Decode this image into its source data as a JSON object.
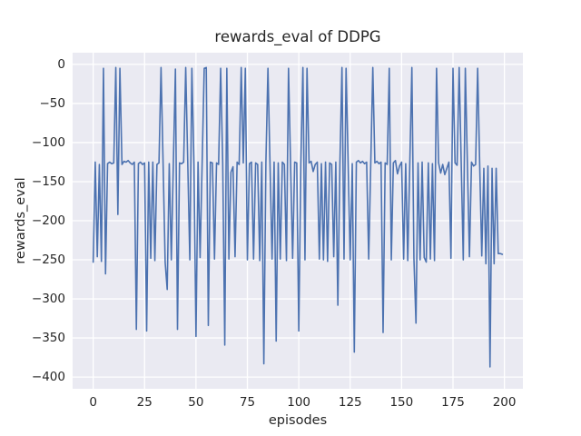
{
  "chart_data": {
    "type": "line",
    "title": "rewards_eval of DDPG",
    "xlabel": "episodes",
    "ylabel": "rewards_eval",
    "grid": true,
    "legend": "none",
    "xlim": [
      -10,
      209
    ],
    "ylim": [
      -415,
      15
    ],
    "x_ticks": [
      0,
      25,
      50,
      75,
      100,
      125,
      150,
      175,
      200
    ],
    "x_tick_labels": [
      "0",
      "25",
      "50",
      "75",
      "100",
      "125",
      "150",
      "175",
      "200"
    ],
    "y_ticks": [
      0,
      -50,
      -100,
      -150,
      -200,
      -250,
      -300,
      -350,
      -400
    ],
    "y_tick_labels": [
      "0",
      "−50",
      "−100",
      "−150",
      "−200",
      "−250",
      "−300",
      "−350",
      "−400"
    ],
    "colors": {
      "line": "#4c72b0",
      "axes_background": "#eaeaf2",
      "grid": "#ffffff",
      "figure_background": "#ffffff",
      "text": "#262626"
    },
    "series": [
      {
        "name": "rewards_eval",
        "color": "#4c72b0",
        "x_start": 0,
        "x_step": 1,
        "values": [
          -253,
          -125,
          -246,
          -128,
          -252,
          -5,
          -268,
          -127,
          -125,
          -127,
          -126,
          -4,
          -192,
          -5,
          -128,
          -124,
          -125,
          -123,
          -126,
          -128,
          -125,
          -339,
          -127,
          -125,
          -128,
          -126,
          -341,
          -125,
          -248,
          -125,
          -251,
          -128,
          -126,
          -4,
          -126,
          -253,
          -288,
          -127,
          -250,
          -125,
          -6,
          -339,
          -126,
          -127,
          -125,
          -4,
          -126,
          -250,
          -5,
          -128,
          -348,
          -125,
          -247,
          -126,
          -5,
          -4,
          -334,
          -125,
          -126,
          -249,
          -126,
          -128,
          -5,
          -126,
          -359,
          -5,
          -249,
          -138,
          -131,
          -246,
          -125,
          -128,
          -4,
          -126,
          -5,
          -250,
          -127,
          -125,
          -249,
          -126,
          -128,
          -251,
          -125,
          -383,
          -126,
          -5,
          -127,
          -249,
          -125,
          -354,
          -126,
          -249,
          -125,
          -128,
          -251,
          -5,
          -127,
          -248,
          -125,
          -126,
          -341,
          -127,
          -4,
          -250,
          -5,
          -126,
          -124,
          -137,
          -128,
          -125,
          -249,
          -127,
          -250,
          -125,
          -252,
          -126,
          -128,
          -246,
          -125,
          -308,
          -127,
          -4,
          -249,
          -5,
          -126,
          -250,
          -127,
          -368,
          -125,
          -123,
          -126,
          -124,
          -127,
          -125,
          -249,
          -128,
          -4,
          -126,
          -124,
          -127,
          -125,
          -343,
          -126,
          -128,
          -5,
          -250,
          -126,
          -123,
          -140,
          -130,
          -125,
          -249,
          -127,
          -251,
          -126,
          -4,
          -248,
          -331,
          -126,
          -250,
          -125,
          -247,
          -253,
          -126,
          -249,
          -127,
          -251,
          -5,
          -126,
          -139,
          -128,
          -141,
          -133,
          -125,
          -248,
          -5,
          -126,
          -129,
          -4,
          -126,
          -250,
          -5,
          -127,
          -246,
          -125,
          -130,
          -128,
          -5,
          -130,
          -245,
          -133,
          -255,
          -130,
          -387,
          -133,
          -255,
          -133,
          -242,
          -242,
          -243
        ]
      }
    ]
  }
}
